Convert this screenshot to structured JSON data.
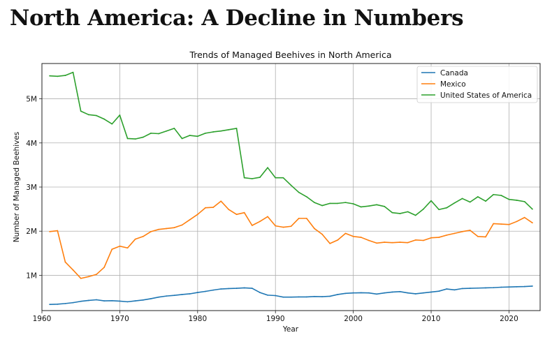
{
  "page": {
    "heading": "North America: A Decline in Numbers"
  },
  "chart_data": {
    "type": "line",
    "title": "Trends of Managed Beehives in North America",
    "xlabel": "Year",
    "ylabel": "Number of Managed Beehives",
    "xlim": [
      1960,
      2024
    ],
    "ylim": [
      200000,
      5800000
    ],
    "xticks": [
      {
        "value": 1960,
        "label": "1960"
      },
      {
        "value": 1970,
        "label": "1970"
      },
      {
        "value": 1980,
        "label": "1980"
      },
      {
        "value": 1990,
        "label": "1990"
      },
      {
        "value": 2000,
        "label": "2000"
      },
      {
        "value": 2010,
        "label": "2010"
      },
      {
        "value": 2020,
        "label": "2020"
      }
    ],
    "yticks": [
      {
        "value": 1000000,
        "label": "1M"
      },
      {
        "value": 2000000,
        "label": "2M"
      },
      {
        "value": 3000000,
        "label": "3M"
      },
      {
        "value": 4000000,
        "label": "4M"
      },
      {
        "value": 5000000,
        "label": "5M"
      }
    ],
    "grid": true,
    "legend_position": "top-right",
    "x": [
      1961,
      1962,
      1963,
      1964,
      1965,
      1966,
      1967,
      1968,
      1969,
      1970,
      1971,
      1972,
      1973,
      1974,
      1975,
      1976,
      1977,
      1978,
      1979,
      1980,
      1981,
      1982,
      1983,
      1984,
      1985,
      1986,
      1987,
      1988,
      1989,
      1990,
      1991,
      1992,
      1993,
      1994,
      1995,
      1996,
      1997,
      1998,
      1999,
      2000,
      2001,
      2002,
      2003,
      2004,
      2005,
      2006,
      2007,
      2008,
      2009,
      2010,
      2011,
      2012,
      2013,
      2014,
      2015,
      2016,
      2017,
      2018,
      2019,
      2020,
      2021,
      2022,
      2023
    ],
    "series": [
      {
        "name": "Canada",
        "color": "#1f77b4",
        "values": [
          340000,
          345000,
          360000,
          380000,
          410000,
          430000,
          445000,
          420000,
          425000,
          415000,
          400000,
          420000,
          440000,
          470000,
          505000,
          530000,
          545000,
          565000,
          580000,
          610000,
          635000,
          665000,
          690000,
          700000,
          705000,
          715000,
          705000,
          610000,
          550000,
          540000,
          505000,
          505000,
          510000,
          510000,
          520000,
          515000,
          525000,
          565000,
          590000,
          600000,
          605000,
          600000,
          575000,
          600000,
          620000,
          630000,
          600000,
          580000,
          600000,
          620000,
          640000,
          690000,
          670000,
          700000,
          705000,
          710000,
          715000,
          720000,
          730000,
          735000,
          740000,
          745000,
          755000
        ]
      },
      {
        "name": "Mexico",
        "color": "#ff7f0e",
        "values": [
          1990000,
          2010000,
          1300000,
          1120000,
          930000,
          970000,
          1020000,
          1180000,
          1590000,
          1660000,
          1620000,
          1820000,
          1880000,
          1990000,
          2040000,
          2060000,
          2080000,
          2140000,
          2260000,
          2380000,
          2530000,
          2540000,
          2680000,
          2490000,
          2380000,
          2420000,
          2130000,
          2220000,
          2330000,
          2120000,
          2090000,
          2110000,
          2290000,
          2290000,
          2060000,
          1930000,
          1720000,
          1800000,
          1950000,
          1880000,
          1860000,
          1790000,
          1730000,
          1750000,
          1740000,
          1750000,
          1740000,
          1800000,
          1790000,
          1850000,
          1860000,
          1910000,
          1950000,
          1990000,
          2020000,
          1880000,
          1870000,
          2170000,
          2160000,
          2150000,
          2220000,
          2310000,
          2190000
        ]
      },
      {
        "name": "United States of America",
        "color": "#2ca02c",
        "values": [
          5520000,
          5510000,
          5530000,
          5600000,
          4720000,
          4640000,
          4620000,
          4540000,
          4430000,
          4630000,
          4100000,
          4090000,
          4130000,
          4220000,
          4210000,
          4270000,
          4330000,
          4100000,
          4170000,
          4150000,
          4220000,
          4250000,
          4270000,
          4300000,
          4330000,
          3210000,
          3190000,
          3220000,
          3440000,
          3210000,
          3210000,
          3040000,
          2880000,
          2780000,
          2650000,
          2580000,
          2630000,
          2630000,
          2650000,
          2620000,
          2550000,
          2570000,
          2600000,
          2560000,
          2420000,
          2400000,
          2440000,
          2360000,
          2500000,
          2690000,
          2490000,
          2530000,
          2640000,
          2740000,
          2660000,
          2780000,
          2680000,
          2830000,
          2810000,
          2720000,
          2700000,
          2670000,
          2500000
        ]
      }
    ]
  }
}
